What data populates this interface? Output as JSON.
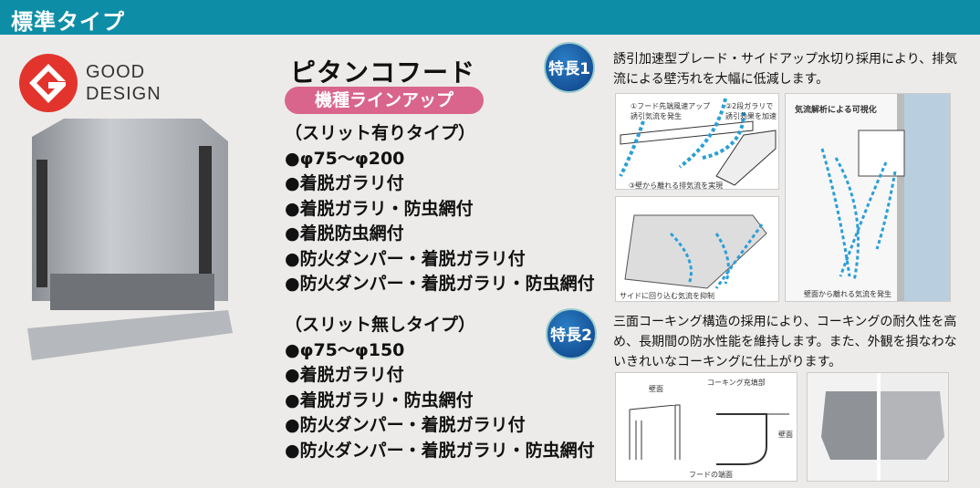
{
  "header": {
    "title": "標準タイプ"
  },
  "logo": {
    "line1": "GOOD",
    "line2": "DESIGN",
    "color": "#e2342c"
  },
  "product": {
    "title": "ピタンコフード",
    "lineup_label": "機種ラインアップ",
    "pill_color": "#d9658c"
  },
  "slit_yes": {
    "heading": "（スリット有りタイプ）",
    "items": [
      "●φ75～φ200",
      "●着脱ガラリ付",
      "●着脱ガラリ・防虫網付",
      "●着脱防虫網付",
      "●防火ダンパー・着脱ガラリ付",
      "●防火ダンパー・着脱ガラリ・防虫網付"
    ]
  },
  "slit_no": {
    "heading": "（スリット無しタイプ）",
    "items": [
      "●φ75～φ150",
      "●着脱ガラリ付",
      "●着脱ガラリ・防虫網付",
      "●防火ダンパー・着脱ガラリ付",
      "●防火ダンパー・着脱ガラリ・防虫網付"
    ]
  },
  "feature1": {
    "badge": "特長1",
    "text": "誘引加速型ブレード・サイドアップ水切り採用により、排気流による壁汚れを大幅に低減します。",
    "fig1": {
      "label1": "①フード先端風速アップ 誘引気流を発生",
      "label2": "②2段ガラリで 誘引効果を加速",
      "label3": "③壁から離れる排気流を実現"
    },
    "fig2": {
      "label": "サイドに回り込む気流を抑制"
    },
    "fig3": {
      "title": "気流解析による可視化",
      "label": "壁面から離れる気流を発生"
    }
  },
  "feature2": {
    "badge": "特長2",
    "text": "三面コーキング構造の採用により、コーキングの耐久性を高め、長期間の防水性能を維持します。また、外観を損なわないきれいなコーキングに仕上がります。",
    "fig": {
      "wall1": "壁面",
      "caulk": "コーキング充填部",
      "wall2": "壁面",
      "edge": "フードの端面"
    }
  },
  "colors": {
    "header": "#0e8ea6",
    "badge": "#0d3f85",
    "arrow": "#2a9fd8"
  }
}
